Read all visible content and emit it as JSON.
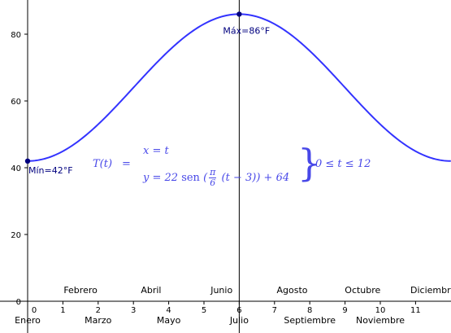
{
  "chart_data": {
    "type": "line",
    "title": "",
    "xlabel": "",
    "ylabel": "",
    "xlim": [
      -0.2,
      12.0
    ],
    "ylim": [
      -1.5,
      90.5
    ],
    "x_ticks": [
      "0",
      "1",
      "2",
      "3",
      "4",
      "5",
      "6",
      "7",
      "8",
      "9",
      "10",
      "11"
    ],
    "y_ticks": [
      "0",
      "20",
      "40",
      "60",
      "80"
    ],
    "grid": false,
    "months": [
      {
        "name": "Enero",
        "x": 0,
        "row": "low"
      },
      {
        "name": "Febrero",
        "x": 1,
        "row": "high"
      },
      {
        "name": "Marzo",
        "x": 2,
        "row": "low"
      },
      {
        "name": "Abril",
        "x": 3,
        "row": "high"
      },
      {
        "name": "Mayo",
        "x": 4,
        "row": "low"
      },
      {
        "name": "Junio",
        "x": 5,
        "row": "high"
      },
      {
        "name": "Julio",
        "x": 6,
        "row": "low"
      },
      {
        "name": "Agosto",
        "x": 7,
        "row": "high"
      },
      {
        "name": "Septiembre",
        "x": 8,
        "row": "low"
      },
      {
        "name": "Octubre",
        "x": 9,
        "row": "high"
      },
      {
        "name": "Noviembre",
        "x": 10,
        "row": "low"
      },
      {
        "name": "Diciembre",
        "x": 11,
        "row": "high"
      }
    ],
    "series": [
      {
        "x": [
          0,
          1,
          2,
          3,
          4,
          5,
          6,
          7,
          8,
          9,
          10,
          11,
          12
        ],
        "values": [
          42,
          44.9,
          53,
          64,
          75,
          83.1,
          86,
          83.1,
          75,
          64,
          53,
          44.9,
          42
        ],
        "color": "#3333ff"
      }
    ],
    "points": [
      {
        "label": "Mín=42°F",
        "x": 0,
        "y": 42
      },
      {
        "label": "Máx=86°F",
        "x": 6,
        "y": 86
      }
    ],
    "vertical_line_x": 6,
    "formula": {
      "name": "T(t)",
      "eq": "=",
      "x_line": "x = t",
      "y_prefix": "y = 22 ",
      "y_sen": "sen",
      "frac_num": "π",
      "frac_den": "6",
      "y_mid": " (t − 3)",
      "y_suffix": " + 64",
      "brace": "}",
      "domain": "0 ≤ t ≤ 12"
    }
  }
}
